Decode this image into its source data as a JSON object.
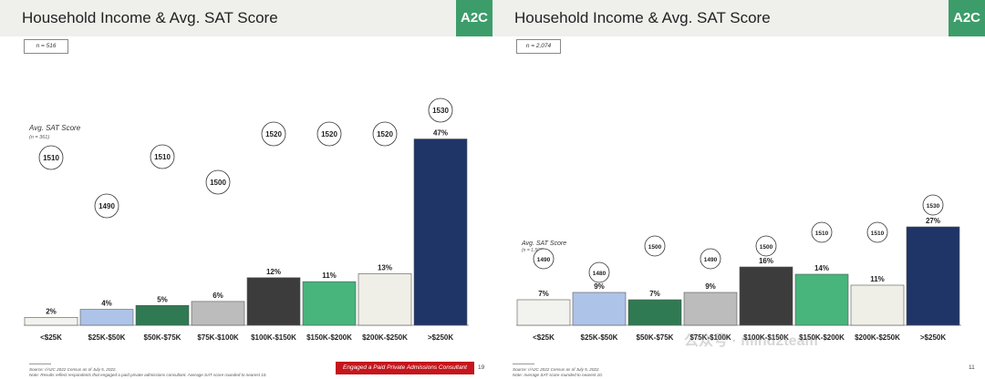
{
  "slides": [
    {
      "title": "Household Income & Avg. SAT Score",
      "logo": "A2C",
      "n_label": "n = 516",
      "sat_label": "Avg. SAT Score",
      "sat_n": "(n = 361)",
      "footnote_source": "Source: r/A2C 2022 Census as of July 5, 2022.",
      "footnote_note": "Note: Results reflect respondents that engaged a paid private admissions consultant. Average SAT score rounded to nearest 10.",
      "badge": "Engaged a Paid Private Admissions Consultant",
      "page": "19"
    },
    {
      "title": "Household Income & Avg. SAT Score",
      "logo": "A2C",
      "n_label": "n = 2,074",
      "sat_label": "Avg. SAT Score",
      "sat_n": "(n = 1,502)",
      "footnote_source": "Source: r/A2C 2022 Census as of July 5, 2022.",
      "footnote_note": "Note: Average SAT score rounded to nearest 10.",
      "page": "11",
      "watermark": "公众号 · mind2team"
    }
  ],
  "chart_data": [
    {
      "type": "bar",
      "title": "Household Income & Avg. SAT Score",
      "categories": [
        "<$25K",
        "$25K-$50K",
        "$50K-$75K",
        "$75K-$100K",
        "$100K-$150K",
        "$150K-$200K",
        "$200K-$250K",
        ">$250K"
      ],
      "values": [
        2,
        4,
        5,
        6,
        12,
        11,
        13,
        47
      ],
      "value_labels": [
        "2%",
        "4%",
        "5%",
        "6%",
        "12%",
        "11%",
        "13%",
        "47%"
      ],
      "sat_scores": [
        1510,
        1490,
        1510,
        1500,
        1520,
        1520,
        1520,
        1530
      ],
      "colors": [
        "#f2f2ee",
        "#aec3e8",
        "#2f7a52",
        "#bcbcbc",
        "#3c3c3c",
        "#47b57c",
        "#efefe8",
        "#1f3467"
      ],
      "grid": false
    },
    {
      "type": "bar",
      "title": "Household Income & Avg. SAT Score",
      "categories": [
        "<$25K",
        "$25K-$50K",
        "$50K-$75K",
        "$75K-$100K",
        "$100K-$150K",
        "$150K-$200K",
        "$200K-$250K",
        ">$250K"
      ],
      "values": [
        7,
        9,
        7,
        9,
        16,
        14,
        11,
        27
      ],
      "value_labels": [
        "7%",
        "9%",
        "7%",
        "9%",
        "16%",
        "14%",
        "11%",
        "27%"
      ],
      "sat_scores": [
        1490,
        1480,
        1500,
        1490,
        1500,
        1510,
        1510,
        1530
      ],
      "colors": [
        "#f2f2ee",
        "#aec3e8",
        "#2f7a52",
        "#bcbcbc",
        "#3c3c3c",
        "#47b57c",
        "#efefe8",
        "#1f3467"
      ],
      "grid": false
    }
  ]
}
